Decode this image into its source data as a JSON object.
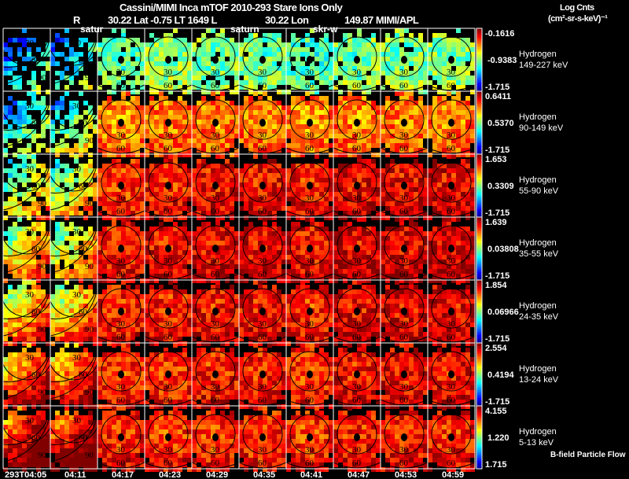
{
  "header": {
    "title": "Cassini/MIMI Inca mTOF  2010-293   Stare   Ions Only",
    "r_label": "R",
    "lat_lt_l": "30.22 Lat -0.75 LT 1649 L",
    "lon": "30.22 Lon",
    "version": "149.87  MIMI/APL",
    "units_line1": "Log Cnts",
    "units_line2": "(cm²-sr-s-keV)⁻¹"
  },
  "overlay_labels": [
    "satur",
    "saturn",
    "skr-w"
  ],
  "footer_note": "B-field Particle Flow",
  "chart_data": {
    "type": "heatmap",
    "title": "Cassini/MIMI Inca mTOF 2010-293 Stare Ions Only",
    "colorbar_label": "Log Cnts (cm²-sr-s-keV)⁻¹",
    "time_labels": [
      "293T04:05",
      "04:11",
      "04:17",
      "04:23",
      "04:29",
      "04:35",
      "04:41",
      "04:47",
      "04:53",
      "04:59"
    ],
    "contour_levels": [
      "30",
      "60",
      "90"
    ],
    "rows": [
      {
        "species": "Hydrogen",
        "energy": "149-227 keV",
        "cb_max": "-0.1616",
        "cb_mid": "-0.9383",
        "cb_min": "-1.715",
        "intensity": [
          0.12,
          0.15,
          0.42,
          0.48,
          0.45,
          0.45,
          0.4,
          0.45,
          0.45,
          0.45
        ]
      },
      {
        "species": "Hydrogen",
        "energy": "90-149 keV",
        "cb_max": "0.6411",
        "cb_mid": "0.5370",
        "cb_min": "-1.715",
        "intensity": [
          0.22,
          0.28,
          0.7,
          0.72,
          0.72,
          0.72,
          0.7,
          0.72,
          0.72,
          0.72
        ]
      },
      {
        "species": "Hydrogen",
        "energy": "55-90 keV",
        "cb_max": "1.653",
        "cb_mid": "0.3309",
        "cb_min": "-1.715",
        "intensity": [
          0.35,
          0.38,
          0.8,
          0.82,
          0.84,
          0.84,
          0.82,
          0.86,
          0.86,
          0.86
        ]
      },
      {
        "species": "Hydrogen",
        "energy": "35-55 keV",
        "cb_max": "1.639",
        "cb_mid": "0.03808",
        "cb_min": "-1.715",
        "intensity": [
          0.45,
          0.42,
          0.82,
          0.84,
          0.86,
          0.86,
          0.84,
          0.87,
          0.88,
          0.88
        ]
      },
      {
        "species": "Hydrogen",
        "energy": "24-35 keV",
        "cb_max": "1.854",
        "cb_mid": "0.06966",
        "cb_min": "-1.715",
        "intensity": [
          0.5,
          0.5,
          0.82,
          0.82,
          0.84,
          0.84,
          0.82,
          0.86,
          0.86,
          0.86
        ]
      },
      {
        "species": "Hydrogen",
        "energy": "13-24 keV",
        "cb_max": "2.554",
        "cb_mid": "0.4194",
        "cb_min": "-1.715",
        "intensity": [
          0.6,
          0.6,
          0.8,
          0.8,
          0.82,
          0.82,
          0.8,
          0.84,
          0.84,
          0.84
        ]
      },
      {
        "species": "Hydrogen",
        "energy": "5-13 keV",
        "cb_max": "4.155",
        "cb_mid": "1.220",
        "cb_min": "1.715",
        "intensity": [
          0.72,
          0.72,
          0.82,
          0.8,
          0.8,
          0.8,
          0.8,
          0.82,
          0.82,
          0.82
        ]
      }
    ]
  }
}
